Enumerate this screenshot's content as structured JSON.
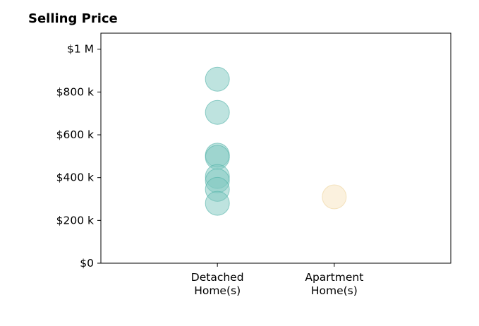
{
  "chart_data": {
    "type": "scatter",
    "title": "Selling Price",
    "xlabel": "",
    "ylabel": "",
    "categories": [
      [
        "Detached",
        "Home(s)"
      ],
      [
        "Apartment",
        "Home(s)"
      ]
    ],
    "ylim": [
      0,
      1000000
    ],
    "yticks": [
      {
        "value": 0,
        "label": "$0"
      },
      {
        "value": 200000,
        "label": "$200 k"
      },
      {
        "value": 400000,
        "label": "$400 k"
      },
      {
        "value": 600000,
        "label": "$600 k"
      },
      {
        "value": 800000,
        "label": "$800 k"
      },
      {
        "value": 1000000,
        "label": "$1 M"
      }
    ],
    "series": [
      {
        "category_index": 0,
        "color": "#7ec8c0",
        "stroke": "#4fb0a6",
        "values": [
          860000,
          705000,
          505000,
          495000,
          405000,
          385000,
          345000,
          280000
        ]
      },
      {
        "category_index": 1,
        "color": "#f7e3bd",
        "stroke": "#ecd29a",
        "values": [
          310000
        ]
      }
    ],
    "grid": false,
    "legend": "none"
  }
}
